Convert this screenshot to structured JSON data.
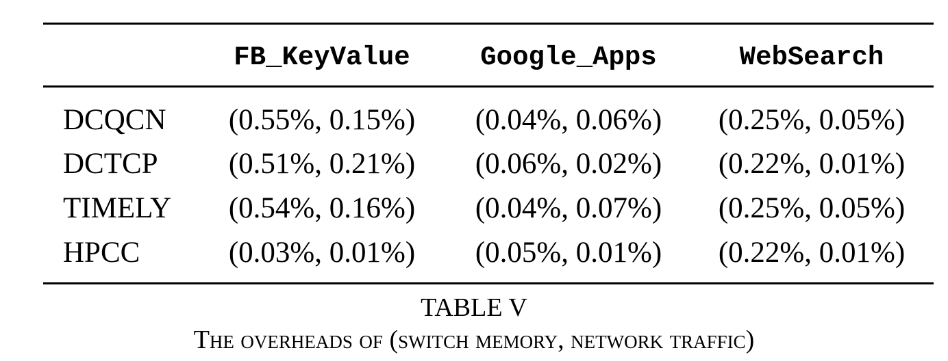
{
  "table": {
    "columns": [
      "",
      "FB_KeyValue",
      "Google_Apps",
      "WebSearch"
    ],
    "rows": [
      {
        "label": "DCQCN",
        "values": [
          "(0.55%, 0.15%)",
          "(0.04%, 0.06%)",
          "(0.25%, 0.05%)"
        ]
      },
      {
        "label": "DCTCP",
        "values": [
          "(0.51%, 0.21%)",
          "(0.06%, 0.02%)",
          "(0.22%, 0.01%)"
        ]
      },
      {
        "label": "TIMELY",
        "values": [
          "(0.54%, 0.16%)",
          "(0.04%, 0.07%)",
          "(0.25%, 0.05%)"
        ]
      },
      {
        "label": "HPCC",
        "values": [
          "(0.03%, 0.01%)",
          "(0.05%, 0.01%)",
          "(0.22%, 0.01%)"
        ]
      }
    ]
  },
  "caption": {
    "title": "TABLE V",
    "text": "The overheads of (switch memory, network traffic)"
  }
}
